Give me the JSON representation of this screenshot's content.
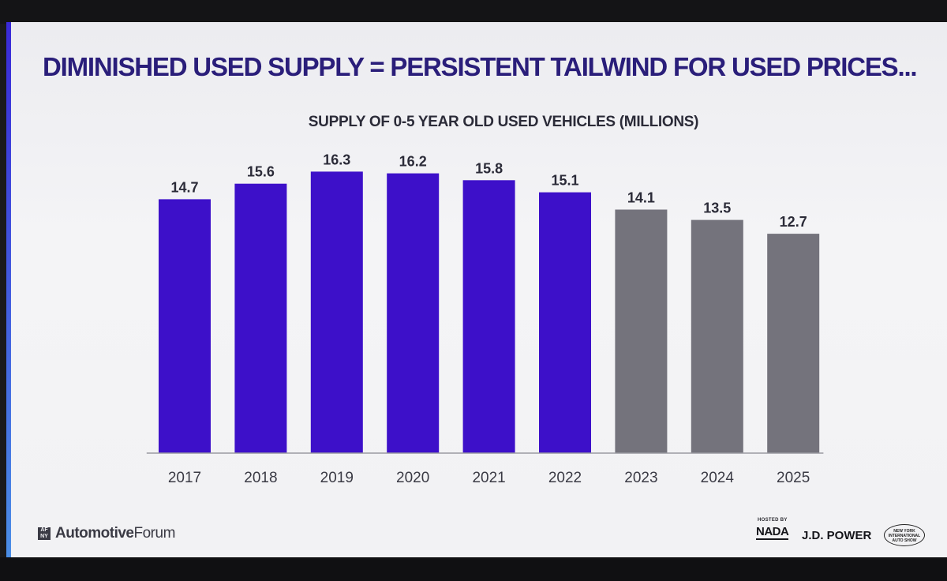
{
  "slide": {
    "headline": "DIMINISHED USED SUPPLY = PERSISTENT TAILWIND FOR USED PRICES...",
    "footer": {
      "forum_mark": "AF NY",
      "forum_name_bold": "Automotive",
      "forum_name_regular": "Forum",
      "hosted_by": "HOSTED BY",
      "nada": "NADA",
      "jd_power": "J.D. POWER",
      "auto_show": "NEW YORK INTERNATIONAL AUTO SHOW"
    }
  },
  "chart_data": {
    "type": "bar",
    "title": "SUPPLY OF 0-5 YEAR OLD USED VEHICLES (MILLIONS)",
    "categories": [
      "2017",
      "2018",
      "2019",
      "2020",
      "2021",
      "2022",
      "2023",
      "2024",
      "2025"
    ],
    "values": [
      14.7,
      15.6,
      16.3,
      16.2,
      15.8,
      15.1,
      14.1,
      13.5,
      12.7
    ],
    "value_labels": [
      "14.7",
      "15.6",
      "16.3",
      "16.2",
      "15.8",
      "15.1",
      "14.1",
      "13.5",
      "12.7"
    ],
    "bar_colors": [
      "#3d10c9",
      "#3d10c9",
      "#3d10c9",
      "#3d10c9",
      "#3d10c9",
      "#3d10c9",
      "#74737c",
      "#74737c",
      "#74737c"
    ],
    "ylim": [
      0,
      16.5
    ],
    "grid": false,
    "legend": "none"
  }
}
